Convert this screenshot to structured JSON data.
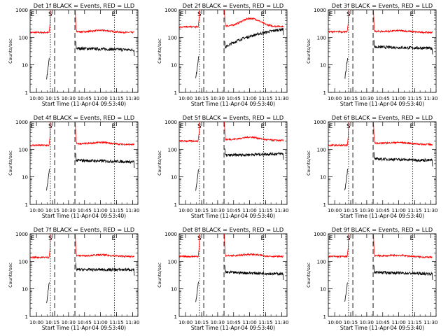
{
  "chart_data": {
    "type": "line",
    "panels": [
      {
        "title": "Det 1f BLACK = Events, RED = LLD",
        "xlabel": "Start Time (11-Apr-04 09:53:40)",
        "red": {
          "pre": 150,
          "post": 160,
          "bump": 1.15,
          "end": 150
        },
        "black": {
          "post": 40,
          "end": 35
        }
      },
      {
        "title": "Det 2f BLACK = Events, RED = LLD",
        "xlabel": "Start Time (11-Apr-04 09:53:40)",
        "red": {
          "pre": 240,
          "post": 260,
          "bump": 1.9,
          "end": 250
        },
        "black": {
          "post": 40,
          "end": 200
        }
      },
      {
        "title": "Det 3f BLACK = Events, RED = LLD",
        "xlabel": "Start Time (11-Apr-04 09:53:40)",
        "red": {
          "pre": 160,
          "post": 165,
          "bump": 1.1,
          "end": 150
        },
        "black": {
          "post": 45,
          "end": 40
        }
      },
      {
        "title": "Det 4f BLACK = Events, RED = LLD",
        "xlabel": "Start Time (11-Apr-04 09:53:40)",
        "red": {
          "pre": 140,
          "post": 160,
          "bump": 1.15,
          "end": 150
        },
        "black": {
          "post": 40,
          "end": 35
        }
      },
      {
        "title": "Det 5f BLACK = Events, RED = LLD",
        "xlabel": "Start Time (11-Apr-04 09:53:40)",
        "red": {
          "pre": 200,
          "post": 230,
          "bump": 1.25,
          "end": 210
        },
        "black": {
          "post": 60,
          "end": 70
        }
      },
      {
        "title": "Det 6f BLACK = Events, RED = LLD",
        "xlabel": "Start Time (11-Apr-04 09:53:40)",
        "red": {
          "pre": 140,
          "post": 170,
          "bump": 1.1,
          "end": 150
        },
        "black": {
          "post": 45,
          "end": 40
        }
      },
      {
        "title": "Det 7f BLACK = Events, RED = LLD",
        "xlabel": "Start Time (11-Apr-04 09:53:40)",
        "red": {
          "pre": 140,
          "post": 160,
          "bump": 1.1,
          "end": 150
        },
        "black": {
          "post": 50,
          "end": 50
        }
      },
      {
        "title": "Det 8f BLACK = Events, RED = LLD",
        "xlabel": "Start Time (11-Apr-04 09:53:40)",
        "red": {
          "pre": 150,
          "post": 160,
          "bump": 1.15,
          "end": 150
        },
        "black": {
          "post": 40,
          "end": 35
        }
      },
      {
        "title": "Det 9f BLACK = Events, RED = LLD",
        "xlabel": "Start Time (11-Apr-04 09:53:40)",
        "red": {
          "pre": 150,
          "post": 160,
          "bump": 1.1,
          "end": 140
        },
        "black": {
          "post": 40,
          "end": 35
        }
      }
    ],
    "ylabel": "Counts/sec",
    "yscale": "log",
    "ylim": [
      1,
      1000
    ],
    "yticks": [
      "1",
      "10",
      "100",
      "1000"
    ],
    "xlim": [
      "09:54",
      "11:35"
    ],
    "xticks": [
      "10:00",
      "10:15",
      "10:30",
      "10:45",
      "11:00",
      "11:15",
      "11:30"
    ],
    "markers": {
      "S": "10:13",
      "E_start": "09:57",
      "E_end": "11:13",
      "saa_start": "10:17",
      "saa_end": "10:36"
    },
    "series_colors": {
      "events": "#000000",
      "lld": "#ff0000"
    }
  }
}
